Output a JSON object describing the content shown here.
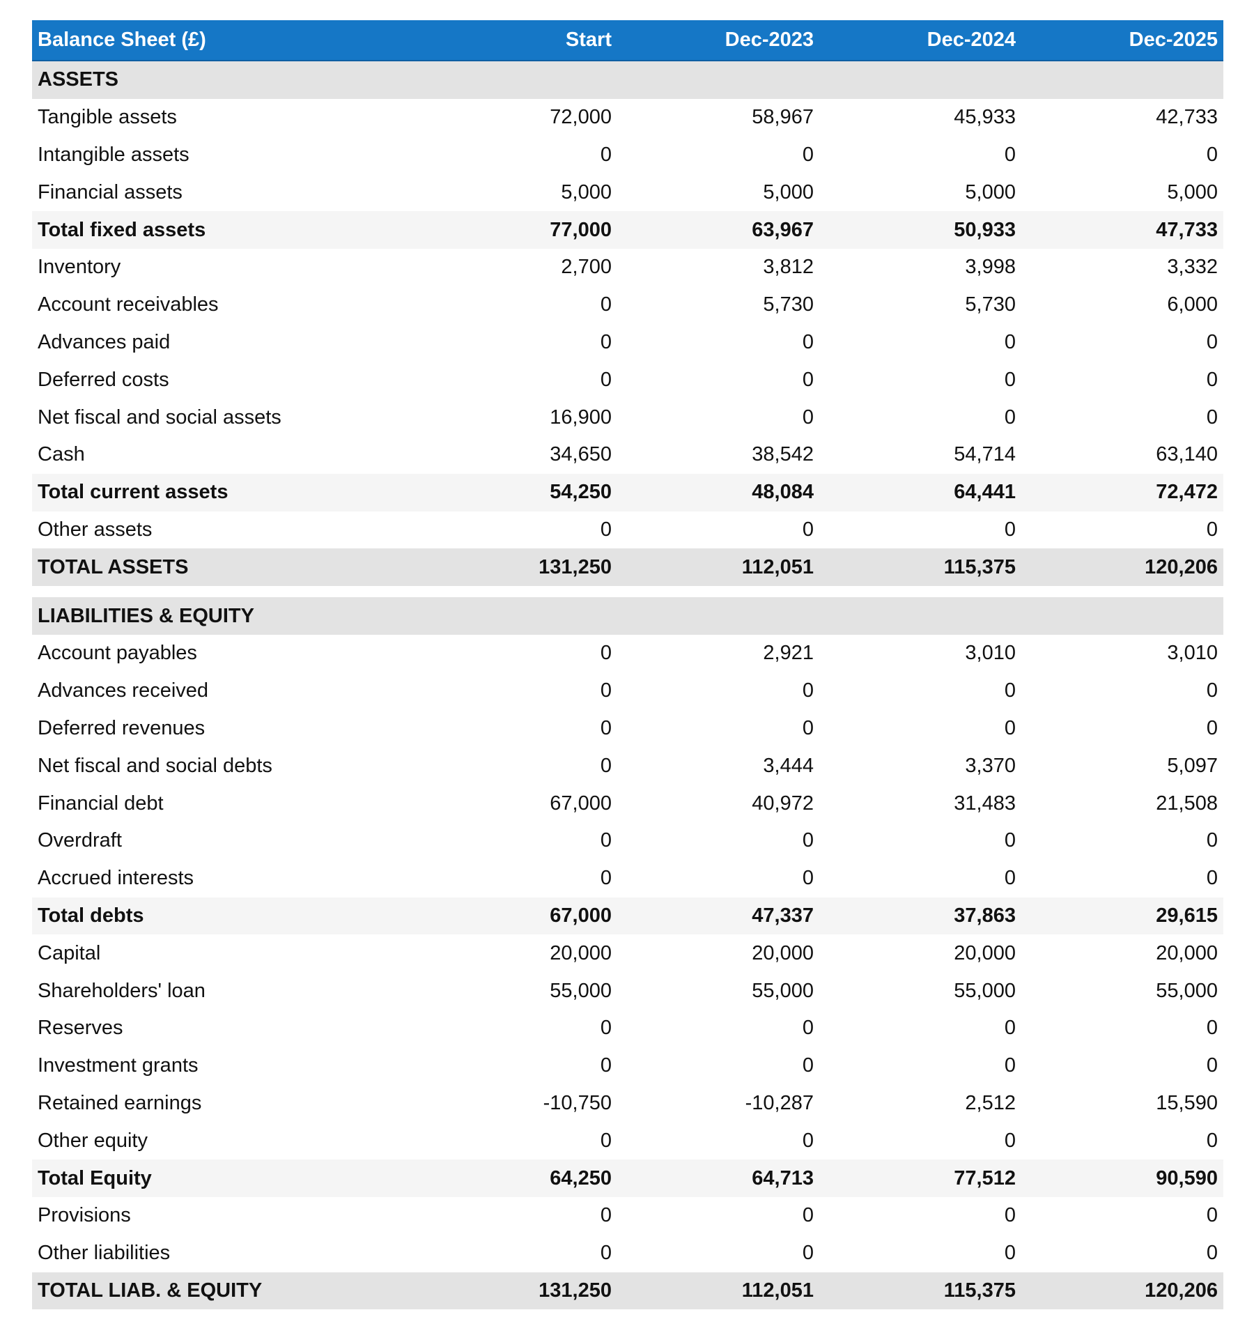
{
  "header": {
    "title": "Balance Sheet (£)",
    "columns": [
      "Start",
      "Dec-2023",
      "Dec-2024",
      "Dec-2025"
    ]
  },
  "colors": {
    "header_bg": "#1577c6",
    "section_bg": "#e3e3e3",
    "subtotal_bg": "#f5f5f5"
  },
  "rows": [
    {
      "type": "section",
      "label": "ASSETS",
      "values": [
        "",
        "",
        "",
        ""
      ]
    },
    {
      "type": "item",
      "label": "Tangible assets",
      "values": [
        "72,000",
        "58,967",
        "45,933",
        "42,733"
      ]
    },
    {
      "type": "item",
      "label": "Intangible assets",
      "values": [
        "0",
        "0",
        "0",
        "0"
      ]
    },
    {
      "type": "item",
      "label": "Financial assets",
      "values": [
        "5,000",
        "5,000",
        "5,000",
        "5,000"
      ]
    },
    {
      "type": "subtotal",
      "label": "Total fixed assets",
      "values": [
        "77,000",
        "63,967",
        "50,933",
        "47,733"
      ]
    },
    {
      "type": "item",
      "label": "Inventory",
      "values": [
        "2,700",
        "3,812",
        "3,998",
        "3,332"
      ]
    },
    {
      "type": "item",
      "label": "Account receivables",
      "values": [
        "0",
        "5,730",
        "5,730",
        "6,000"
      ]
    },
    {
      "type": "item",
      "label": "Advances paid",
      "values": [
        "0",
        "0",
        "0",
        "0"
      ]
    },
    {
      "type": "item",
      "label": "Deferred costs",
      "values": [
        "0",
        "0",
        "0",
        "0"
      ]
    },
    {
      "type": "item",
      "label": "Net fiscal and social assets",
      "values": [
        "16,900",
        "0",
        "0",
        "0"
      ]
    },
    {
      "type": "item",
      "label": "Cash",
      "values": [
        "34,650",
        "38,542",
        "54,714",
        "63,140"
      ]
    },
    {
      "type": "subtotal",
      "label": "Total current assets",
      "values": [
        "54,250",
        "48,084",
        "64,441",
        "72,472"
      ]
    },
    {
      "type": "item",
      "label": "Other assets",
      "values": [
        "0",
        "0",
        "0",
        "0"
      ]
    },
    {
      "type": "total",
      "label": "TOTAL ASSETS",
      "values": [
        "131,250",
        "112,051",
        "115,375",
        "120,206"
      ]
    },
    {
      "type": "gap",
      "label": "",
      "values": []
    },
    {
      "type": "section",
      "label": "LIABILITIES & EQUITY",
      "values": [
        "",
        "",
        "",
        ""
      ]
    },
    {
      "type": "item",
      "label": "Account payables",
      "values": [
        "0",
        "2,921",
        "3,010",
        "3,010"
      ]
    },
    {
      "type": "item",
      "label": "Advances received",
      "values": [
        "0",
        "0",
        "0",
        "0"
      ]
    },
    {
      "type": "item",
      "label": "Deferred revenues",
      "values": [
        "0",
        "0",
        "0",
        "0"
      ]
    },
    {
      "type": "item",
      "label": "Net fiscal and social debts",
      "values": [
        "0",
        "3,444",
        "3,370",
        "5,097"
      ]
    },
    {
      "type": "item",
      "label": "Financial debt",
      "values": [
        "67,000",
        "40,972",
        "31,483",
        "21,508"
      ]
    },
    {
      "type": "item",
      "label": "Overdraft",
      "values": [
        "0",
        "0",
        "0",
        "0"
      ]
    },
    {
      "type": "item",
      "label": "Accrued interests",
      "values": [
        "0",
        "0",
        "0",
        "0"
      ]
    },
    {
      "type": "subtotal",
      "label": "Total debts",
      "values": [
        "67,000",
        "47,337",
        "37,863",
        "29,615"
      ]
    },
    {
      "type": "item",
      "label": "Capital",
      "values": [
        "20,000",
        "20,000",
        "20,000",
        "20,000"
      ]
    },
    {
      "type": "item",
      "label": "Shareholders' loan",
      "values": [
        "55,000",
        "55,000",
        "55,000",
        "55,000"
      ]
    },
    {
      "type": "item",
      "label": "Reserves",
      "values": [
        "0",
        "0",
        "0",
        "0"
      ]
    },
    {
      "type": "item",
      "label": "Investment grants",
      "values": [
        "0",
        "0",
        "0",
        "0"
      ]
    },
    {
      "type": "item",
      "label": "Retained earnings",
      "values": [
        "-10,750",
        "-10,287",
        "2,512",
        "15,590"
      ]
    },
    {
      "type": "item",
      "label": "Other equity",
      "values": [
        "0",
        "0",
        "0",
        "0"
      ]
    },
    {
      "type": "subtotal",
      "label": "Total Equity",
      "values": [
        "64,250",
        "64,713",
        "77,512",
        "90,590"
      ]
    },
    {
      "type": "item",
      "label": "Provisions",
      "values": [
        "0",
        "0",
        "0",
        "0"
      ]
    },
    {
      "type": "item",
      "label": "Other liabilities",
      "values": [
        "0",
        "0",
        "0",
        "0"
      ]
    },
    {
      "type": "total",
      "label": "TOTAL LIAB. & EQUITY",
      "values": [
        "131,250",
        "112,051",
        "115,375",
        "120,206"
      ]
    }
  ]
}
